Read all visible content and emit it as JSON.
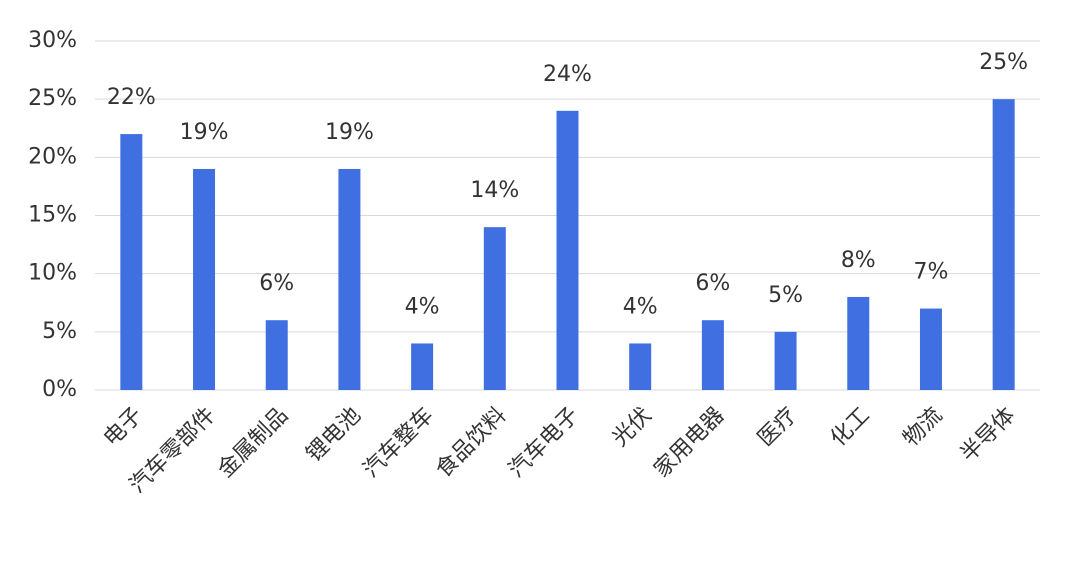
{
  "chart_data": {
    "type": "bar",
    "categories": [
      "电子",
      "汽车零部件",
      "金属制品",
      "锂电池",
      "汽车整车",
      "食品饮料",
      "汽车电子",
      "光伏",
      "家用电器",
      "医疗",
      "化工",
      "物流",
      "半导体"
    ],
    "values": [
      22,
      19,
      6,
      19,
      4,
      14,
      24,
      4,
      6,
      5,
      8,
      7,
      25
    ],
    "value_labels": [
      "22%",
      "19%",
      "6%",
      "19%",
      "4%",
      "14%",
      "24%",
      "4%",
      "6%",
      "5%",
      "8%",
      "7%",
      "25%"
    ],
    "color": "#3f6fe0",
    "ylim": [
      0,
      30
    ],
    "yticks": [
      {
        "value": 0,
        "label": "0%"
      },
      {
        "value": 5,
        "label": "5%"
      },
      {
        "value": 10,
        "label": "10%"
      },
      {
        "value": 15,
        "label": "15%"
      },
      {
        "value": 20,
        "label": "20%"
      },
      {
        "value": 25,
        "label": "25%"
      },
      {
        "value": 30,
        "label": "30%"
      }
    ],
    "grid": true
  }
}
